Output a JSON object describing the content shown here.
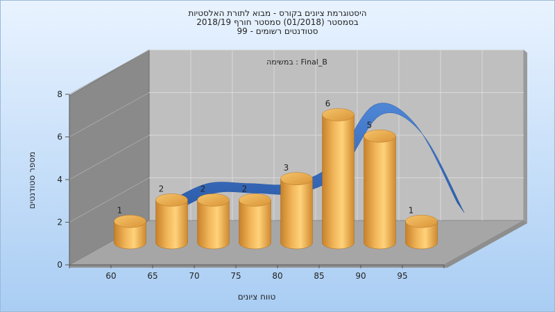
{
  "chart_data": {
    "type": "bar",
    "title_lines": [
      "היסטוגרמת ציונים בקורס - מבוא לתורת האלסטיות",
      "בסמסטר  (01/2018)  סמסטר חורף 2018/19",
      "סטודנטים רשומים - 99"
    ],
    "annotation": "במשימה : Final_B",
    "xlabel": "טווח ציונים",
    "ylabel": "מספר סטודנטים",
    "x_ticks": [
      "60",
      "65",
      "70",
      "75",
      "80",
      "85",
      "90",
      "95"
    ],
    "y_ticks": [
      0,
      2,
      4,
      6,
      8
    ],
    "ylim": [
      0,
      8
    ],
    "values": [
      1,
      2,
      2,
      2,
      3,
      6,
      5,
      1
    ],
    "value_labels": [
      "1",
      "2",
      "2",
      "2",
      "3",
      "6",
      "5",
      "1"
    ],
    "trend_curve": true,
    "grid": true,
    "colors": {
      "bar_light": "#ffd27a",
      "bar_mid": "#e8a341",
      "bar_dark": "#c7812a",
      "curve": "#3a6fc0",
      "back_wall": "#bfbfbf",
      "side_wall": "#8a8a8a",
      "floor": "#a6a6a6",
      "bg_top": "#e9f3ff",
      "bg_bottom": "#a9cdf3"
    }
  }
}
